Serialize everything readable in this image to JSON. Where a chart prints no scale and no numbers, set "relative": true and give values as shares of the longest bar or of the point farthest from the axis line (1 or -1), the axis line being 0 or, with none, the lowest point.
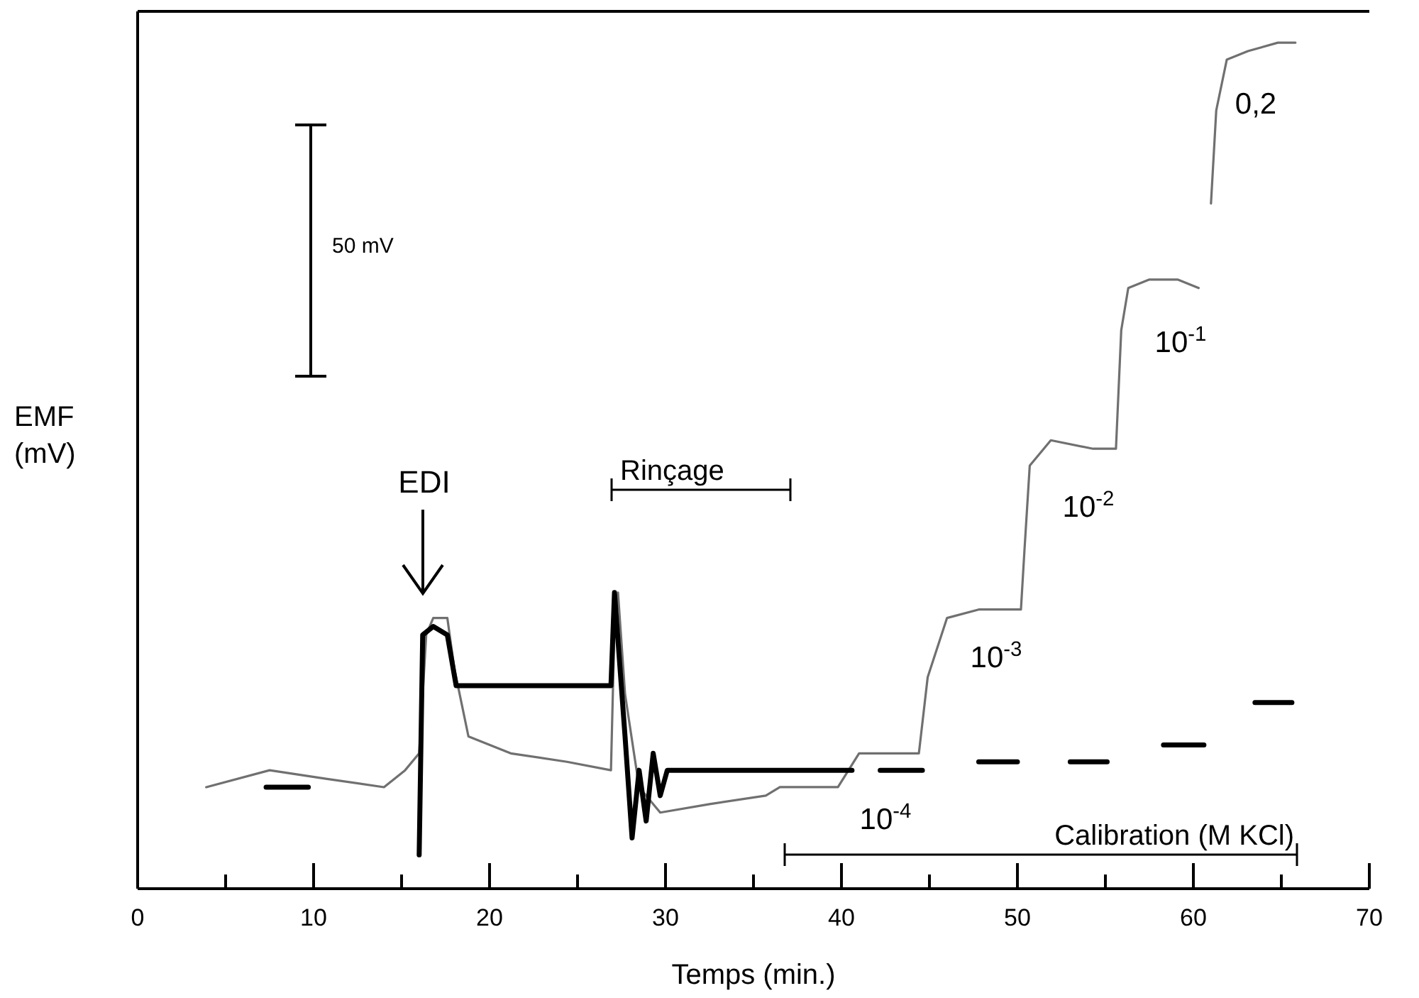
{
  "chart_data": {
    "type": "line",
    "relative": true,
    "xlabel": "Temps (min.)",
    "ylabel": "EMF (mV)",
    "xlim": [
      0,
      70
    ],
    "xticks": [
      0,
      {
        "value": 5,
        "label": null
      },
      10,
      {
        "value": 15,
        "label": null
      },
      20,
      {
        "value": 25,
        "label": null
      },
      30,
      {
        "value": 35,
        "label": null
      },
      40,
      {
        "value": 45,
        "label": null
      },
      50,
      {
        "value": 55,
        "label": null
      },
      60,
      {
        "value": 65,
        "label": null
      },
      70
    ],
    "grid": false,
    "marker": "none",
    "line_style": "solid",
    "series": [
      {
        "color": "#707070",
        "x": [
          3.9,
          7.5,
          10.7,
          14.0,
          15.2,
          16.0,
          16.4,
          16.8,
          17.6,
          18.0,
          18.8,
          21.2,
          24.4,
          26.9,
          27.1,
          27.3,
          27.7,
          28.5,
          29.7,
          32.5,
          35.7,
          36.5,
          39.8,
          41.0,
          44.4,
          44.9,
          46.0,
          47.8,
          50.2,
          50.4,
          50.7,
          51.9,
          54.3,
          55.6,
          55.9,
          56.3,
          57.5,
          59.1,
          60.3,
          60.6,
          61.0,
          61.3,
          61.9,
          63.1,
          64.8,
          65.8
        ],
        "values": [
          0.12,
          0.14,
          0.13,
          0.12,
          0.14,
          0.16,
          0.3,
          0.32,
          0.32,
          0.26,
          0.18,
          0.16,
          0.15,
          0.14,
          0.31,
          0.35,
          0.23,
          0.12,
          0.09,
          0.1,
          0.11,
          0.12,
          0.12,
          0.16,
          0.16,
          0.25,
          0.32,
          0.33,
          0.33,
          0.4,
          0.5,
          0.53,
          0.52,
          0.52,
          0.66,
          0.71,
          0.72,
          0.72,
          0.71,
          null,
          0.81,
          0.92,
          0.98,
          0.99,
          1.0,
          1.0
        ]
      },
      {
        "color": "#000000",
        "x": [
          7.3,
          9.7,
          12.0,
          16.0,
          16.2,
          16.8,
          17.6,
          18.1,
          19.6,
          22.8,
          26.9,
          27.1,
          27.7,
          28.1,
          28.5,
          28.9,
          29.3,
          29.7,
          30.1,
          40.6,
          41.4,
          42.2,
          44.6,
          46.2,
          47.8,
          50.0,
          51.5,
          53.0,
          55.1,
          56.7,
          58.3,
          60.6,
          62.0,
          63.5,
          65.6
        ],
        "values": [
          0.12,
          0.12,
          null,
          0.04,
          0.3,
          0.31,
          0.3,
          0.24,
          0.24,
          0.24,
          0.24,
          0.35,
          0.18,
          0.06,
          0.14,
          0.08,
          0.16,
          0.11,
          0.14,
          0.14,
          null,
          0.14,
          0.14,
          null,
          0.15,
          0.15,
          null,
          0.15,
          0.15,
          null,
          0.17,
          0.17,
          null,
          0.22,
          0.22
        ]
      }
    ],
    "annotations": [
      "50 mV",
      "EDI",
      "Rinçage",
      "Calibration (M KCl)",
      "10$^{-4}$",
      "10$^{-3}$",
      "10$^{-2}$",
      "10$^{-1}$",
      "0,2"
    ]
  }
}
